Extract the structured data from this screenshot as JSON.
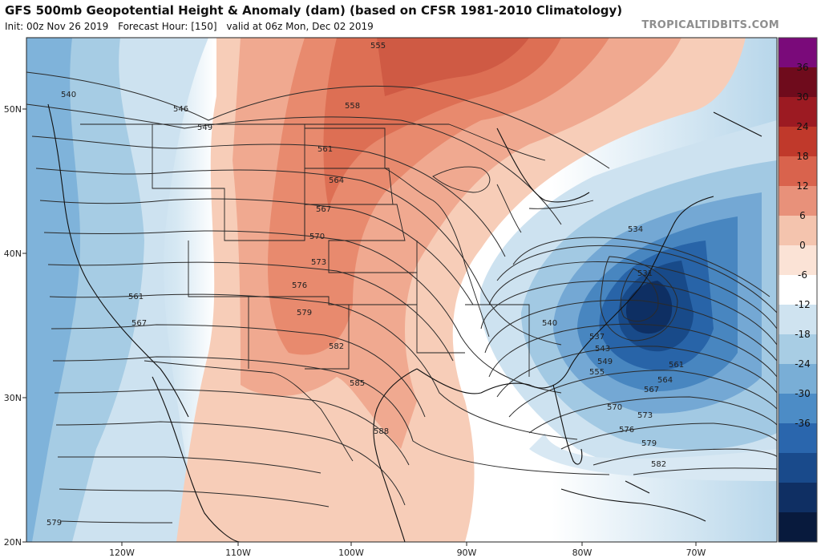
{
  "header": {
    "title": "GFS 500mb Geopotential Height & Anomaly (dam) (based on CFSR 1981-2010 Climatology)",
    "init": "Init: 00z Nov 26 2019",
    "forecast_hour": "Forecast Hour: [150]",
    "valid": "valid at 06z Mon, Dec 02 2019",
    "brand": "TROPICALTIDBITS.COM"
  },
  "axes": {
    "latitude_labels": [
      "50N",
      "40N",
      "30N",
      "20N"
    ],
    "longitude_labels": [
      "120W",
      "110W",
      "100W",
      "90W",
      "80W",
      "70W"
    ]
  },
  "colorbar": {
    "labels": [
      "36",
      "30",
      "24",
      "18",
      "12",
      "6",
      "0",
      "-6",
      "-12",
      "-18",
      "-24",
      "-30",
      "-36"
    ],
    "colors": [
      "#7a0a7a",
      "#6f0b1c",
      "#9c1a22",
      "#c0392b",
      "#d9634d",
      "#e8917a",
      "#f4c4ae",
      "#fbe3d6",
      "#ffffff",
      "#cfe3f0",
      "#a8cde4",
      "#79aed6",
      "#4c8cc6",
      "#2a66ad",
      "#194a8b",
      "#0f2f63",
      "#081a3d"
    ]
  },
  "contour_labels": [
    "540",
    "546",
    "549",
    "555",
    "558",
    "561",
    "564",
    "567",
    "570",
    "573",
    "576",
    "579",
    "582",
    "585",
    "588",
    "561",
    "567",
    "579",
    "534",
    "531",
    "537",
    "540",
    "543",
    "549",
    "555",
    "561",
    "564",
    "567",
    "570",
    "573",
    "576",
    "579",
    "582"
  ]
}
